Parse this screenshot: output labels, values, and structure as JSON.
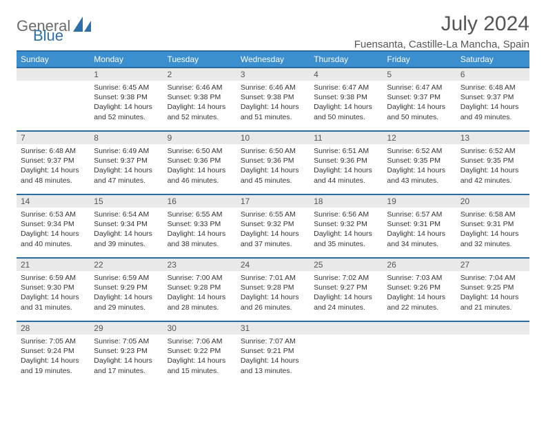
{
  "brand": {
    "general": "General",
    "blue": "Blue"
  },
  "title": "July 2024",
  "location": "Fuensanta, Castille-La Mancha, Spain",
  "colors": {
    "header_bg": "#3c8fcf",
    "header_border": "#2a6aa0",
    "daynum_bg": "#e9e9e9",
    "text": "#333333",
    "muted": "#555555",
    "brand_blue": "#2f6fa8",
    "brand_gray": "#6b6b6b",
    "page_bg": "#ffffff"
  },
  "typography": {
    "title_fontsize": 30,
    "location_fontsize": 15,
    "dayheader_fontsize": 12,
    "body_fontsize": 10.5
  },
  "day_headers": [
    "Sunday",
    "Monday",
    "Tuesday",
    "Wednesday",
    "Thursday",
    "Friday",
    "Saturday"
  ],
  "weeks": [
    [
      {
        "n": "",
        "sunrise": "",
        "sunset": "",
        "daylight": ""
      },
      {
        "n": "1",
        "sunrise": "Sunrise: 6:45 AM",
        "sunset": "Sunset: 9:38 PM",
        "daylight": "Daylight: 14 hours and 52 minutes."
      },
      {
        "n": "2",
        "sunrise": "Sunrise: 6:46 AM",
        "sunset": "Sunset: 9:38 PM",
        "daylight": "Daylight: 14 hours and 52 minutes."
      },
      {
        "n": "3",
        "sunrise": "Sunrise: 6:46 AM",
        "sunset": "Sunset: 9:38 PM",
        "daylight": "Daylight: 14 hours and 51 minutes."
      },
      {
        "n": "4",
        "sunrise": "Sunrise: 6:47 AM",
        "sunset": "Sunset: 9:38 PM",
        "daylight": "Daylight: 14 hours and 50 minutes."
      },
      {
        "n": "5",
        "sunrise": "Sunrise: 6:47 AM",
        "sunset": "Sunset: 9:37 PM",
        "daylight": "Daylight: 14 hours and 50 minutes."
      },
      {
        "n": "6",
        "sunrise": "Sunrise: 6:48 AM",
        "sunset": "Sunset: 9:37 PM",
        "daylight": "Daylight: 14 hours and 49 minutes."
      }
    ],
    [
      {
        "n": "7",
        "sunrise": "Sunrise: 6:48 AM",
        "sunset": "Sunset: 9:37 PM",
        "daylight": "Daylight: 14 hours and 48 minutes."
      },
      {
        "n": "8",
        "sunrise": "Sunrise: 6:49 AM",
        "sunset": "Sunset: 9:37 PM",
        "daylight": "Daylight: 14 hours and 47 minutes."
      },
      {
        "n": "9",
        "sunrise": "Sunrise: 6:50 AM",
        "sunset": "Sunset: 9:36 PM",
        "daylight": "Daylight: 14 hours and 46 minutes."
      },
      {
        "n": "10",
        "sunrise": "Sunrise: 6:50 AM",
        "sunset": "Sunset: 9:36 PM",
        "daylight": "Daylight: 14 hours and 45 minutes."
      },
      {
        "n": "11",
        "sunrise": "Sunrise: 6:51 AM",
        "sunset": "Sunset: 9:36 PM",
        "daylight": "Daylight: 14 hours and 44 minutes."
      },
      {
        "n": "12",
        "sunrise": "Sunrise: 6:52 AM",
        "sunset": "Sunset: 9:35 PM",
        "daylight": "Daylight: 14 hours and 43 minutes."
      },
      {
        "n": "13",
        "sunrise": "Sunrise: 6:52 AM",
        "sunset": "Sunset: 9:35 PM",
        "daylight": "Daylight: 14 hours and 42 minutes."
      }
    ],
    [
      {
        "n": "14",
        "sunrise": "Sunrise: 6:53 AM",
        "sunset": "Sunset: 9:34 PM",
        "daylight": "Daylight: 14 hours and 40 minutes."
      },
      {
        "n": "15",
        "sunrise": "Sunrise: 6:54 AM",
        "sunset": "Sunset: 9:34 PM",
        "daylight": "Daylight: 14 hours and 39 minutes."
      },
      {
        "n": "16",
        "sunrise": "Sunrise: 6:55 AM",
        "sunset": "Sunset: 9:33 PM",
        "daylight": "Daylight: 14 hours and 38 minutes."
      },
      {
        "n": "17",
        "sunrise": "Sunrise: 6:55 AM",
        "sunset": "Sunset: 9:32 PM",
        "daylight": "Daylight: 14 hours and 37 minutes."
      },
      {
        "n": "18",
        "sunrise": "Sunrise: 6:56 AM",
        "sunset": "Sunset: 9:32 PM",
        "daylight": "Daylight: 14 hours and 35 minutes."
      },
      {
        "n": "19",
        "sunrise": "Sunrise: 6:57 AM",
        "sunset": "Sunset: 9:31 PM",
        "daylight": "Daylight: 14 hours and 34 minutes."
      },
      {
        "n": "20",
        "sunrise": "Sunrise: 6:58 AM",
        "sunset": "Sunset: 9:31 PM",
        "daylight": "Daylight: 14 hours and 32 minutes."
      }
    ],
    [
      {
        "n": "21",
        "sunrise": "Sunrise: 6:59 AM",
        "sunset": "Sunset: 9:30 PM",
        "daylight": "Daylight: 14 hours and 31 minutes."
      },
      {
        "n": "22",
        "sunrise": "Sunrise: 6:59 AM",
        "sunset": "Sunset: 9:29 PM",
        "daylight": "Daylight: 14 hours and 29 minutes."
      },
      {
        "n": "23",
        "sunrise": "Sunrise: 7:00 AM",
        "sunset": "Sunset: 9:28 PM",
        "daylight": "Daylight: 14 hours and 28 minutes."
      },
      {
        "n": "24",
        "sunrise": "Sunrise: 7:01 AM",
        "sunset": "Sunset: 9:28 PM",
        "daylight": "Daylight: 14 hours and 26 minutes."
      },
      {
        "n": "25",
        "sunrise": "Sunrise: 7:02 AM",
        "sunset": "Sunset: 9:27 PM",
        "daylight": "Daylight: 14 hours and 24 minutes."
      },
      {
        "n": "26",
        "sunrise": "Sunrise: 7:03 AM",
        "sunset": "Sunset: 9:26 PM",
        "daylight": "Daylight: 14 hours and 22 minutes."
      },
      {
        "n": "27",
        "sunrise": "Sunrise: 7:04 AM",
        "sunset": "Sunset: 9:25 PM",
        "daylight": "Daylight: 14 hours and 21 minutes."
      }
    ],
    [
      {
        "n": "28",
        "sunrise": "Sunrise: 7:05 AM",
        "sunset": "Sunset: 9:24 PM",
        "daylight": "Daylight: 14 hours and 19 minutes."
      },
      {
        "n": "29",
        "sunrise": "Sunrise: 7:05 AM",
        "sunset": "Sunset: 9:23 PM",
        "daylight": "Daylight: 14 hours and 17 minutes."
      },
      {
        "n": "30",
        "sunrise": "Sunrise: 7:06 AM",
        "sunset": "Sunset: 9:22 PM",
        "daylight": "Daylight: 14 hours and 15 minutes."
      },
      {
        "n": "31",
        "sunrise": "Sunrise: 7:07 AM",
        "sunset": "Sunset: 9:21 PM",
        "daylight": "Daylight: 14 hours and 13 minutes."
      },
      {
        "n": "",
        "sunrise": "",
        "sunset": "",
        "daylight": ""
      },
      {
        "n": "",
        "sunrise": "",
        "sunset": "",
        "daylight": ""
      },
      {
        "n": "",
        "sunrise": "",
        "sunset": "",
        "daylight": ""
      }
    ]
  ]
}
